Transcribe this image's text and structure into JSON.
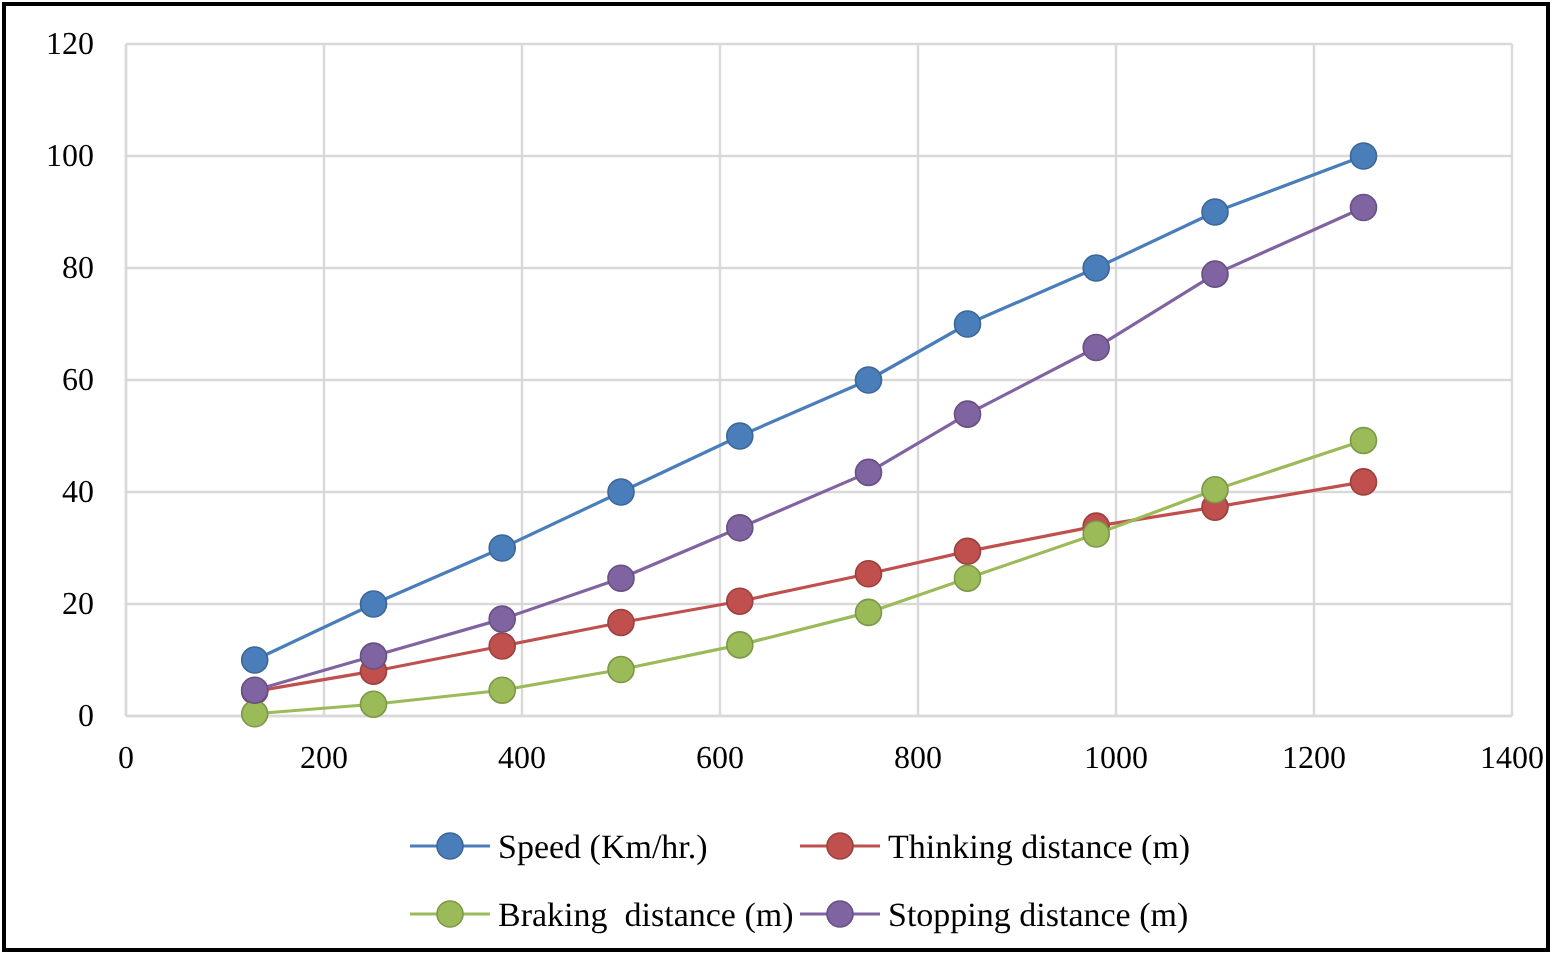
{
  "chart_data": {
    "type": "line",
    "x": [
      130,
      250,
      380,
      500,
      620,
      750,
      850,
      980,
      1100,
      1250
    ],
    "series": [
      {
        "name": "Speed (Km/hr.)",
        "color": "#4a7ebb",
        "values": [
          10,
          20,
          30,
          40,
          50,
          60,
          70,
          80,
          90,
          100
        ]
      },
      {
        "name": "Thinking distance (m)",
        "color": "#c0504d",
        "values": [
          4.4,
          8,
          12.5,
          16.7,
          20.5,
          25.4,
          29.4,
          33.9,
          37.3,
          41.8
        ]
      },
      {
        "name": "Braking  distance (m)",
        "color": "#9bbb59",
        "values": [
          0.4,
          2.1,
          4.6,
          8.3,
          12.7,
          18.5,
          24.6,
          32.5,
          40.4,
          49.2
        ]
      },
      {
        "name": "Stopping distance (m)",
        "color": "#8064a2",
        "values": [
          4.6,
          10.7,
          17.3,
          24.6,
          33.6,
          43.5,
          53.9,
          65.8,
          78.9,
          90.8
        ]
      }
    ],
    "xlim": [
      0,
      1400
    ],
    "xticks": [
      0,
      200,
      400,
      600,
      800,
      1000,
      1200,
      1400
    ],
    "ylim": [
      0,
      120
    ],
    "yticks": [
      0,
      20,
      40,
      60,
      80,
      100,
      120
    ],
    "grid": true,
    "legend": "bottom",
    "marker": "circle",
    "line_style": "solid"
  }
}
